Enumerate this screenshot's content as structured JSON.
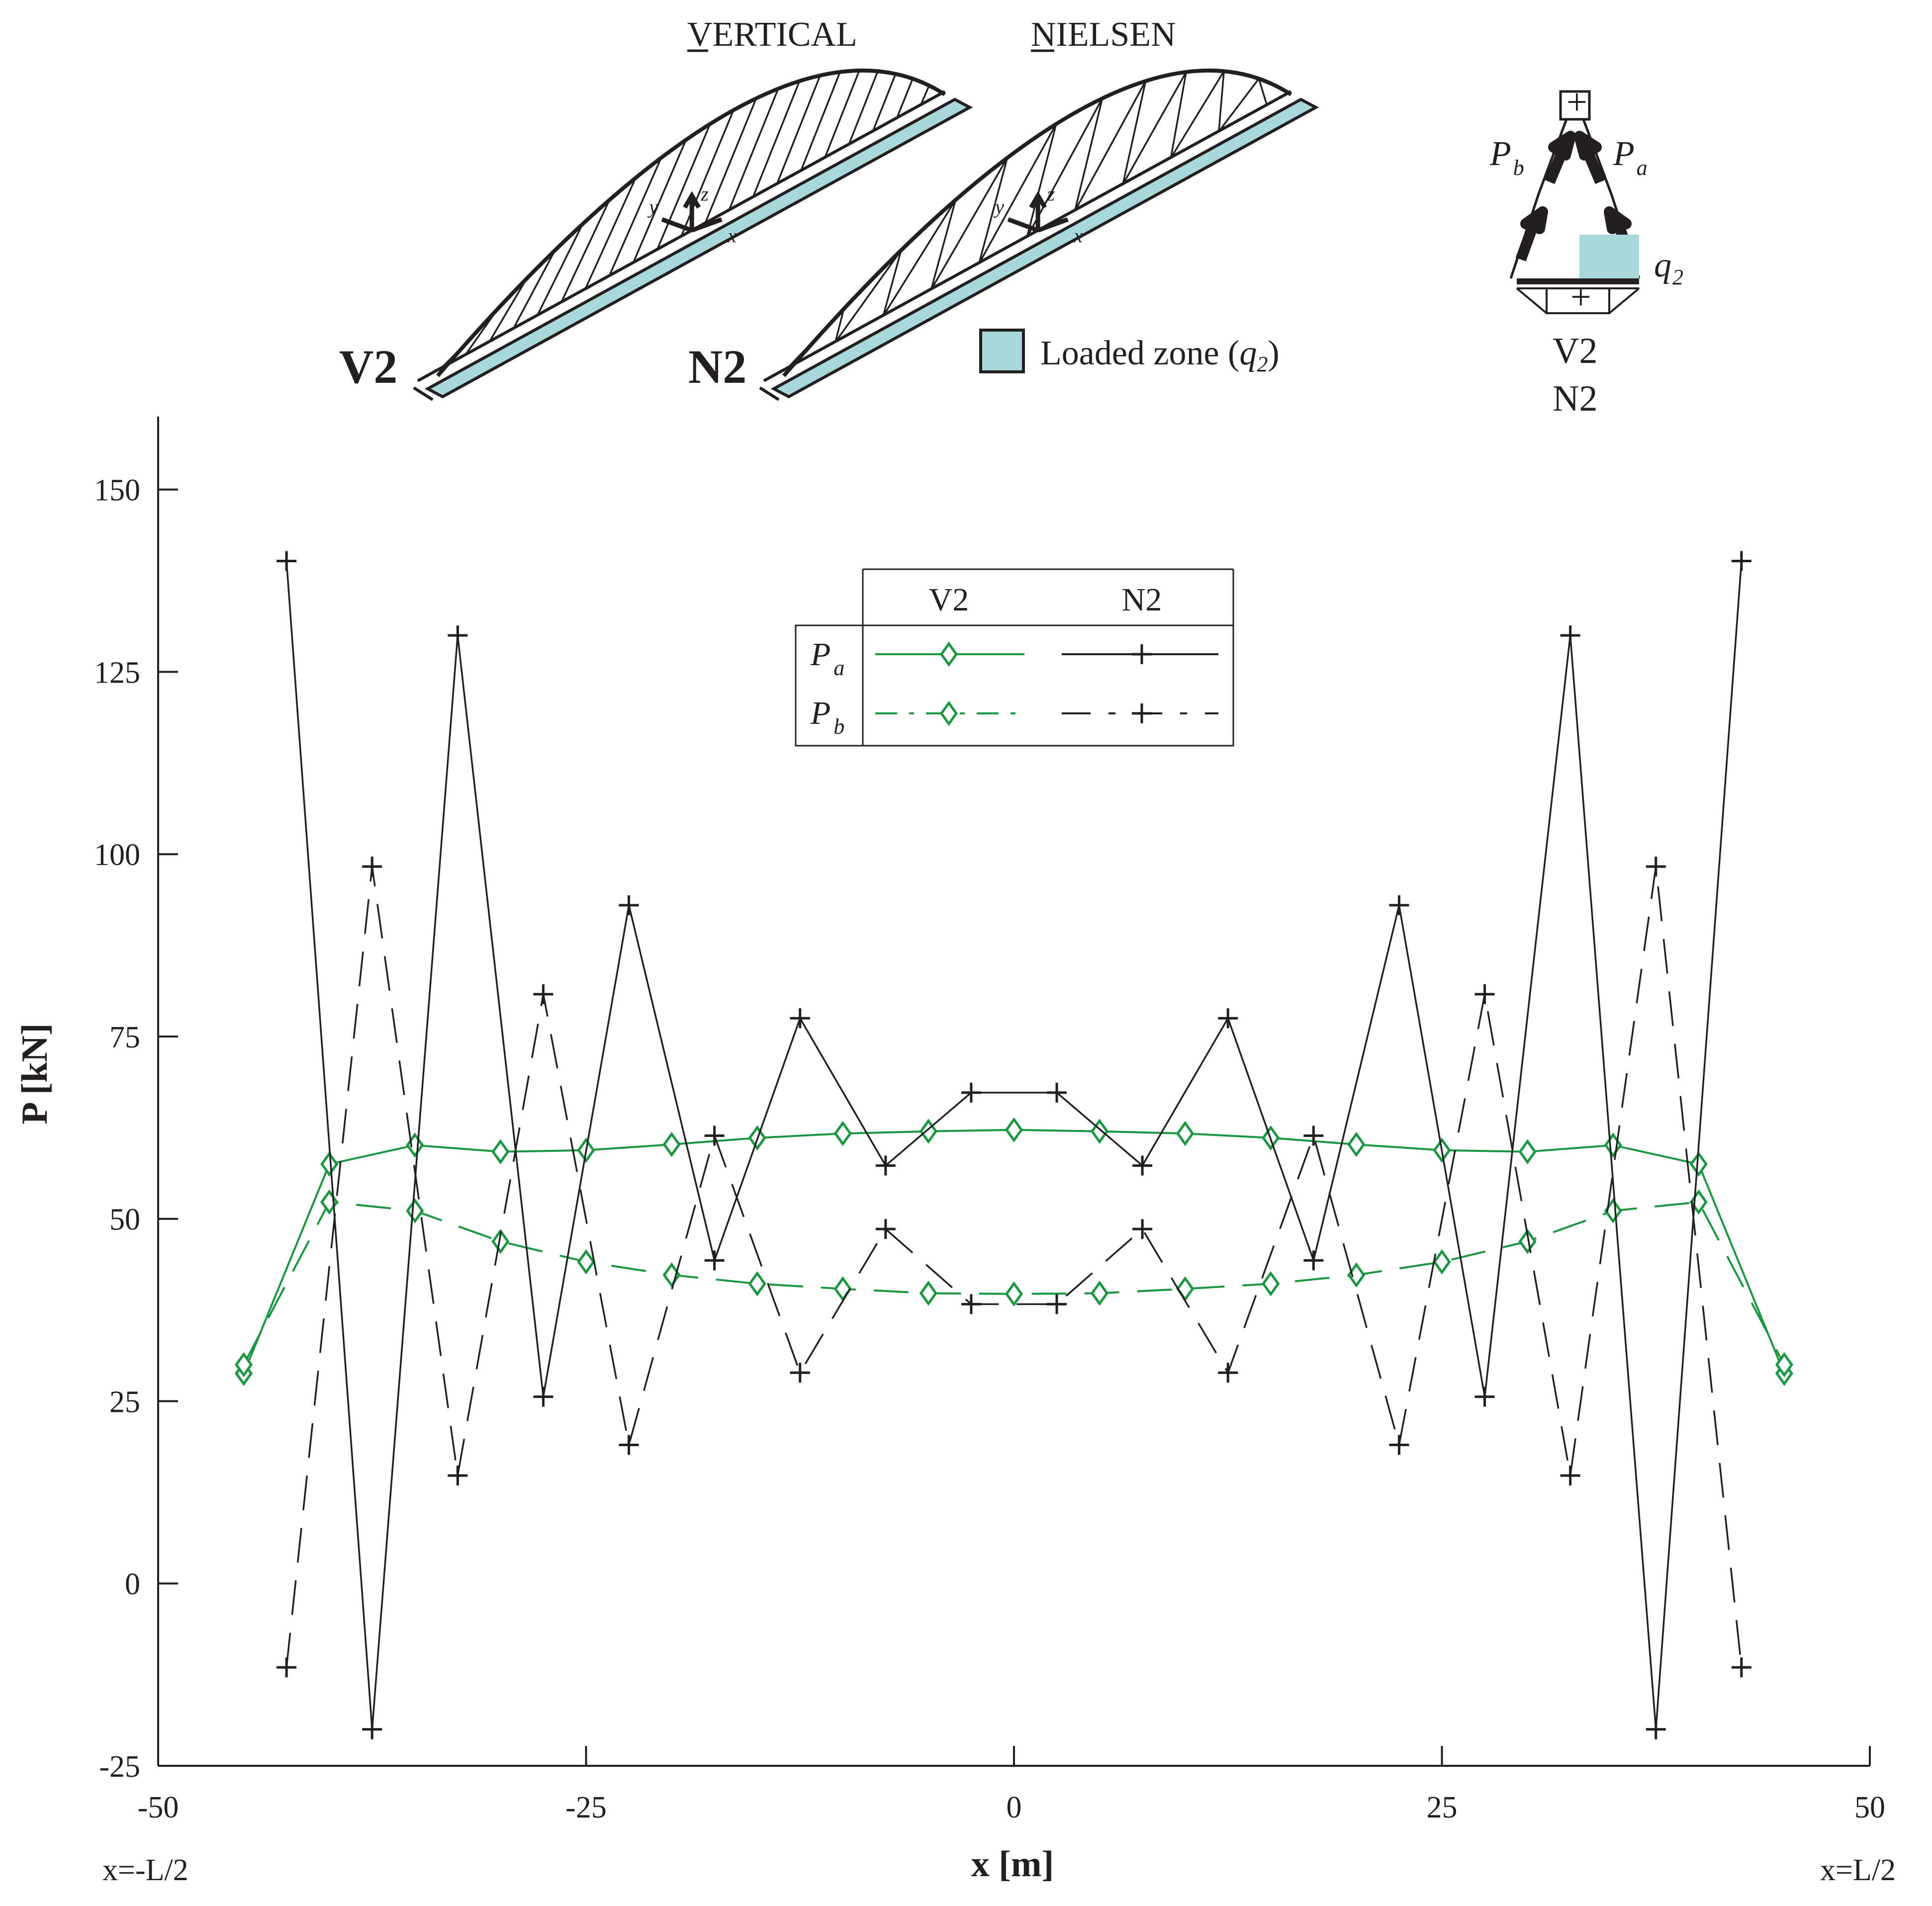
{
  "header": {
    "vertical_title": "VERTICAL",
    "vertical_initial": "V",
    "nielsen_title": "NIELSEN",
    "nielsen_initial": "N",
    "bridge_label_v": "V2",
    "bridge_label_n": "N2",
    "loaded_zone_label": "Loaded zone (",
    "loaded_zone_q": "q",
    "loaded_zone_sub": "2",
    "loaded_zone_close": ")",
    "axis_x": "x",
    "axis_y": "y",
    "axis_z": "z"
  },
  "section": {
    "pb": "P",
    "pb_sub": "b",
    "pa": "P",
    "pa_sub": "a",
    "q": "q",
    "q_sub": "2",
    "label_v": "V2",
    "label_n": "N2",
    "plus": "+"
  },
  "colors": {
    "green": "#1a9641",
    "black": "#231f20",
    "deck": "#a8d8dc"
  },
  "legend": {
    "col_v": "V2",
    "col_n": "N2",
    "row_a": "P",
    "row_a_sub": "a",
    "row_b": "P",
    "row_b_sub": "b"
  },
  "chart_data": {
    "type": "line",
    "xlabel": "x [m]",
    "ylabel": "P [kN]",
    "xlim": [
      -50,
      50
    ],
    "ylim": [
      -25,
      160
    ],
    "xticks": [
      "-50",
      "-25",
      "0",
      "25",
      "50"
    ],
    "yticks": [
      "-25",
      "0",
      "25",
      "50",
      "75",
      "100",
      "125",
      "150"
    ],
    "x_start_label": "x=-L/2",
    "x_end_label": "x=L/2",
    "series": [
      {
        "name": "V2 Pa",
        "style": "solid-green-diamond",
        "x": [
          -45,
          -40,
          -35,
          -30,
          -25,
          -20,
          -15,
          -10,
          -5,
          0,
          5,
          10,
          15,
          20,
          25,
          30,
          35,
          40,
          45
        ],
        "y": [
          28.8,
          57.5,
          60.1,
          59.2,
          59.4,
          60.2,
          61.1,
          61.7,
          62.0,
          62.2,
          62.0,
          61.7,
          61.1,
          60.2,
          59.4,
          59.2,
          60.1,
          57.5,
          28.8
        ]
      },
      {
        "name": "V2 Pb",
        "style": "dashed-green-diamond",
        "x": [
          -45,
          -40,
          -35,
          -30,
          -25,
          -20,
          -15,
          -10,
          -5,
          0,
          5,
          10,
          15,
          20,
          25,
          30,
          35,
          40,
          45
        ],
        "y": [
          30.0,
          52.3,
          51.1,
          46.9,
          44.1,
          42.3,
          41.1,
          40.4,
          39.8,
          39.7,
          39.8,
          40.4,
          41.1,
          42.3,
          44.1,
          46.9,
          51.1,
          52.3,
          30.0
        ]
      },
      {
        "name": "N2 Pa",
        "style": "solid-black-plus",
        "x": [
          -42.5,
          -37.5,
          -32.5,
          -27.5,
          -22.5,
          -17.5,
          -12.5,
          -7.5,
          -2.5,
          2.5,
          7.5,
          12.5,
          17.5,
          22.5,
          27.5,
          32.5,
          37.5,
          42.5
        ],
        "y": [
          140.2,
          -20.0,
          130.0,
          25.6,
          93.0,
          44.3,
          77.5,
          57.3,
          67.3,
          67.3,
          57.3,
          77.5,
          44.3,
          93.0,
          25.6,
          130.0,
          -20.0,
          140.2
        ]
      },
      {
        "name": "N2 Pb",
        "style": "dashed-black-plus",
        "x": [
          -42.5,
          -37.5,
          -32.5,
          -27.5,
          -22.5,
          -17.5,
          -12.5,
          -7.5,
          -2.5,
          2.5,
          7.5,
          12.5,
          17.5,
          22.5,
          27.5,
          32.5,
          37.5,
          42.5
        ],
        "y": [
          -11.5,
          98.3,
          14.8,
          80.8,
          19.0,
          61.4,
          28.9,
          48.6,
          38.3,
          38.3,
          48.6,
          28.9,
          61.4,
          19.0,
          80.8,
          14.8,
          98.3,
          -11.5
        ]
      }
    ]
  }
}
